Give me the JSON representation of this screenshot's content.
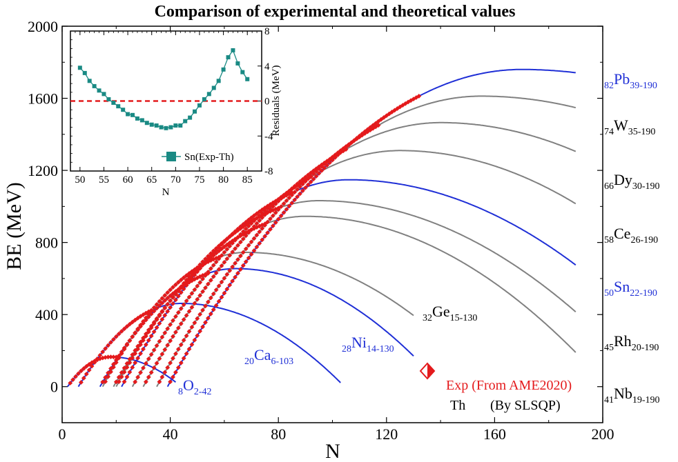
{
  "chart_data": [
    {
      "type": "line",
      "title": "Comparison of experimental and theoretical values",
      "xlabel": "N",
      "ylabel": "BE (MeV)",
      "xlim": [
        0,
        200
      ],
      "ylim": [
        -200,
        2000
      ],
      "xticks": [
        0,
        40,
        80,
        120,
        160,
        200
      ],
      "yticks": [
        0,
        400,
        800,
        1200,
        1600,
        2000
      ],
      "colors": {
        "theory_blue": "#1f2fd6",
        "theory_gray": "#808080",
        "experiment": "#e41a1c"
      },
      "series": [
        {
          "Z": "8",
          "sym": "O",
          "range": "2-42",
          "color": "blue",
          "n_start": 2,
          "n_end": 42,
          "peak_n": 18,
          "peak_be": 165,
          "end_be": 25,
          "exp_end": 20
        },
        {
          "Z": "20",
          "sym": "Ca",
          "range": "6-103",
          "color": "blue",
          "n_start": 6,
          "n_end": 103,
          "peak_n": 44,
          "peak_be": 462,
          "end_be": 22,
          "exp_end": 33
        },
        {
          "Z": "28",
          "sym": "Ni",
          "range": "14-130",
          "color": "blue",
          "n_start": 14,
          "n_end": 130,
          "peak_n": 64,
          "peak_be": 655,
          "end_be": 170,
          "exp_end": 54
        },
        {
          "Z": "32",
          "sym": "Ge",
          "range": "15-130",
          "color": "gray",
          "n_start": 15,
          "n_end": 130,
          "peak_n": 68,
          "peak_be": 745,
          "end_be": 395,
          "exp_end": 58
        },
        {
          "Z": "41",
          "sym": "Nb",
          "range": "19-190",
          "color": "gray",
          "n_start": 19,
          "n_end": 190,
          "peak_n": 90,
          "peak_be": 945,
          "end_be": 190,
          "exp_end": 75
        },
        {
          "Z": "45",
          "sym": "Rh",
          "range": "20-190",
          "color": "gray",
          "n_start": 20,
          "n_end": 190,
          "peak_n": 95,
          "peak_be": 1032,
          "end_be": 415,
          "exp_end": 80
        },
        {
          "Z": "50",
          "sym": "Sn",
          "range": "22-190",
          "color": "blue",
          "n_start": 22,
          "n_end": 190,
          "peak_n": 106,
          "peak_be": 1148,
          "end_be": 675,
          "exp_end": 85
        },
        {
          "Z": "58",
          "sym": "Ce",
          "range": "26-190",
          "color": "gray",
          "n_start": 26,
          "n_end": 190,
          "peak_n": 125,
          "peak_be": 1310,
          "end_be": 1015,
          "exp_end": 92
        },
        {
          "Z": "66",
          "sym": "Dy",
          "range": "30-190",
          "color": "gray",
          "n_start": 30,
          "n_end": 190,
          "peak_n": 140,
          "peak_be": 1465,
          "end_be": 1305,
          "exp_end": 105
        },
        {
          "Z": "74",
          "sym": "W",
          "range": "35-190",
          "color": "gray",
          "n_start": 35,
          "n_end": 190,
          "peak_n": 155,
          "peak_be": 1612,
          "end_be": 1548,
          "exp_end": 117
        },
        {
          "Z": "82",
          "sym": "Pb",
          "range": "39-190",
          "color": "blue",
          "n_start": 39,
          "n_end": 190,
          "peak_n": 170,
          "peak_be": 1760,
          "end_be": 1742,
          "exp_end": 132
        }
      ],
      "legend": {
        "position": "bottom-right",
        "exp_label": "Exp (From AME2020)",
        "th_label": "Th",
        "th_method": "(By SLSQP)"
      }
    },
    {
      "type": "line",
      "position": "inset-top-left",
      "xlabel": "N",
      "ylabel": "Residuals (MeV)",
      "xlim": [
        48,
        88
      ],
      "ylim": [
        -8,
        8
      ],
      "xticks": [
        50,
        55,
        60,
        65,
        70,
        75,
        80,
        85
      ],
      "yticks": [
        -8,
        -4,
        0,
        4,
        8
      ],
      "zero_line": true,
      "series": [
        {
          "name": "Sn(Exp-Th)",
          "color": "#1a8a84",
          "x": [
            50,
            51,
            52,
            53,
            54,
            55,
            56,
            57,
            58,
            59,
            60,
            61,
            62,
            63,
            64,
            65,
            66,
            67,
            68,
            69,
            70,
            71,
            72,
            73,
            74,
            75,
            76,
            77,
            78,
            79,
            80,
            81,
            82,
            83,
            84,
            85
          ],
          "y": [
            3.8,
            3.2,
            2.3,
            1.7,
            1.2,
            0.8,
            0.2,
            -0.2,
            -0.6,
            -1.0,
            -1.5,
            -1.6,
            -2.0,
            -2.2,
            -2.5,
            -2.7,
            -2.8,
            -3.0,
            -3.1,
            -3.0,
            -2.8,
            -2.8,
            -2.3,
            -1.9,
            -1.2,
            -0.5,
            0.2,
            0.8,
            1.5,
            2.3,
            3.6,
            5.0,
            5.8,
            4.3,
            3.3,
            2.5
          ]
        }
      ]
    }
  ]
}
